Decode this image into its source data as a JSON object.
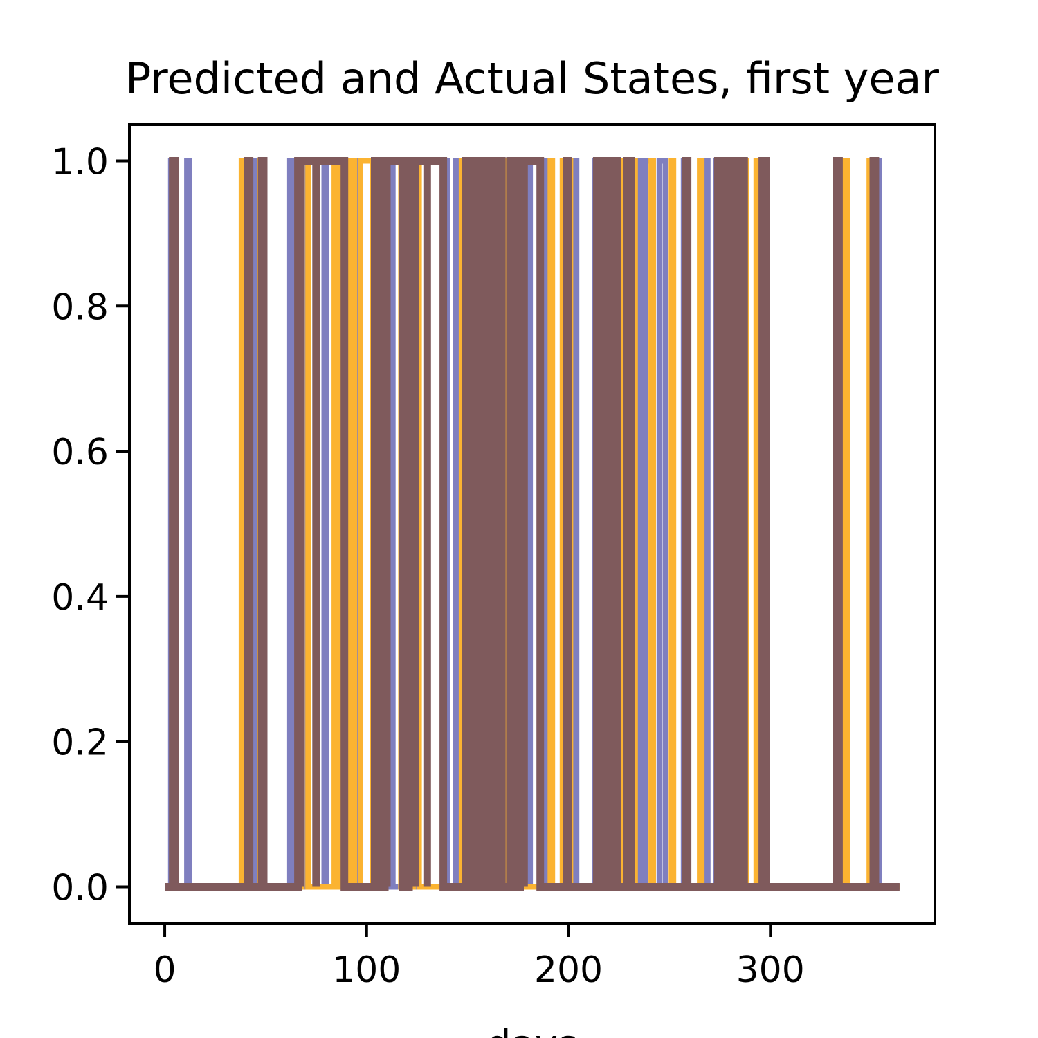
{
  "chart_data": {
    "type": "line",
    "title": "Predicted and Actual States, first year",
    "xlabel": "days",
    "ylabel": "",
    "xlim": [
      -17.5,
      381.5
    ],
    "ylim": [
      -0.05,
      1.05
    ],
    "xticks": [
      0,
      100,
      200,
      300
    ],
    "xtick_labels": [
      "0",
      "100",
      "200",
      "300"
    ],
    "yticks": [
      0.0,
      0.2,
      0.4,
      0.6,
      0.8,
      1.0
    ],
    "ytick_labels": [
      "0.0",
      "0.2",
      "0.4",
      "0.6",
      "0.8",
      "1.0"
    ],
    "grid": false,
    "legend": "none",
    "series": [
      {
        "color": "#7f7fbf",
        "width": 8,
        "intervals": [
          [
            3,
            4
          ],
          [
            11,
            12
          ],
          [
            44,
            46
          ],
          [
            46,
            48
          ],
          [
            62,
            63
          ],
          [
            64,
            65
          ],
          [
            69,
            70
          ],
          [
            79,
            80
          ],
          [
            91,
            92
          ],
          [
            95,
            96
          ],
          [
            104,
            105
          ],
          [
            107,
            110
          ],
          [
            111,
            113
          ],
          [
            119,
            121
          ],
          [
            138,
            140
          ],
          [
            144,
            146
          ],
          [
            152,
            153
          ],
          [
            155,
            156
          ],
          [
            161,
            162
          ],
          [
            165,
            166
          ],
          [
            168,
            169
          ],
          [
            174,
            175
          ],
          [
            177,
            178
          ],
          [
            180,
            181
          ],
          [
            188,
            189
          ],
          [
            202,
            204
          ],
          [
            213,
            214
          ],
          [
            216,
            217
          ],
          [
            223,
            225
          ],
          [
            230,
            231
          ],
          [
            235,
            236
          ],
          [
            238,
            242
          ],
          [
            245,
            248
          ],
          [
            257,
            258
          ],
          [
            268,
            269
          ],
          [
            273,
            274
          ],
          [
            279,
            281
          ],
          [
            284,
            286
          ],
          [
            295,
            296
          ],
          [
            334,
            336
          ],
          [
            352,
            354
          ]
        ]
      },
      {
        "color": "#fbb331",
        "width": 8,
        "intervals": [
          [
            38,
            39
          ],
          [
            47,
            48
          ],
          [
            68,
            71
          ],
          [
            84,
            85
          ],
          [
            87,
            88
          ],
          [
            92,
            94
          ],
          [
            97,
            103
          ],
          [
            107,
            117
          ],
          [
            123,
            126
          ],
          [
            147,
            148
          ],
          [
            151,
            152
          ],
          [
            164,
            165
          ],
          [
            169,
            171
          ],
          [
            174,
            176
          ],
          [
            191,
            192
          ],
          [
            197,
            198
          ],
          [
            200,
            201
          ],
          [
            218,
            219
          ],
          [
            226,
            227
          ],
          [
            232,
            233
          ],
          [
            241,
            242
          ],
          [
            251,
            252
          ],
          [
            265,
            266
          ],
          [
            284,
            285
          ],
          [
            287,
            288
          ],
          [
            293,
            294
          ],
          [
            337,
            338
          ],
          [
            349,
            350
          ]
        ]
      },
      {
        "color": "#7f5a5c",
        "width": 11,
        "intervals": [
          [
            4,
            5
          ],
          [
            41,
            42
          ],
          [
            48,
            49
          ],
          [
            66,
            67
          ],
          [
            67,
            75
          ],
          [
            75,
            89
          ],
          [
            104,
            106
          ],
          [
            109,
            110
          ],
          [
            110,
            118
          ],
          [
            121,
            122
          ],
          [
            122,
            124
          ],
          [
            124,
            130
          ],
          [
            130,
            138
          ],
          [
            149,
            150
          ],
          [
            150,
            152
          ],
          [
            154,
            155
          ],
          [
            156,
            158
          ],
          [
            159,
            160
          ],
          [
            162,
            163
          ],
          [
            166,
            167
          ],
          [
            171,
            172
          ],
          [
            176,
            178
          ],
          [
            178,
            186
          ],
          [
            199,
            200
          ],
          [
            214,
            215
          ],
          [
            216,
            218
          ],
          [
            221,
            224
          ],
          [
            229,
            231
          ],
          [
            258,
            259
          ],
          [
            274,
            275
          ],
          [
            277,
            279
          ],
          [
            282,
            283
          ],
          [
            286,
            287
          ],
          [
            296,
            298
          ],
          [
            333,
            334
          ],
          [
            351,
            352
          ]
        ]
      }
    ]
  }
}
